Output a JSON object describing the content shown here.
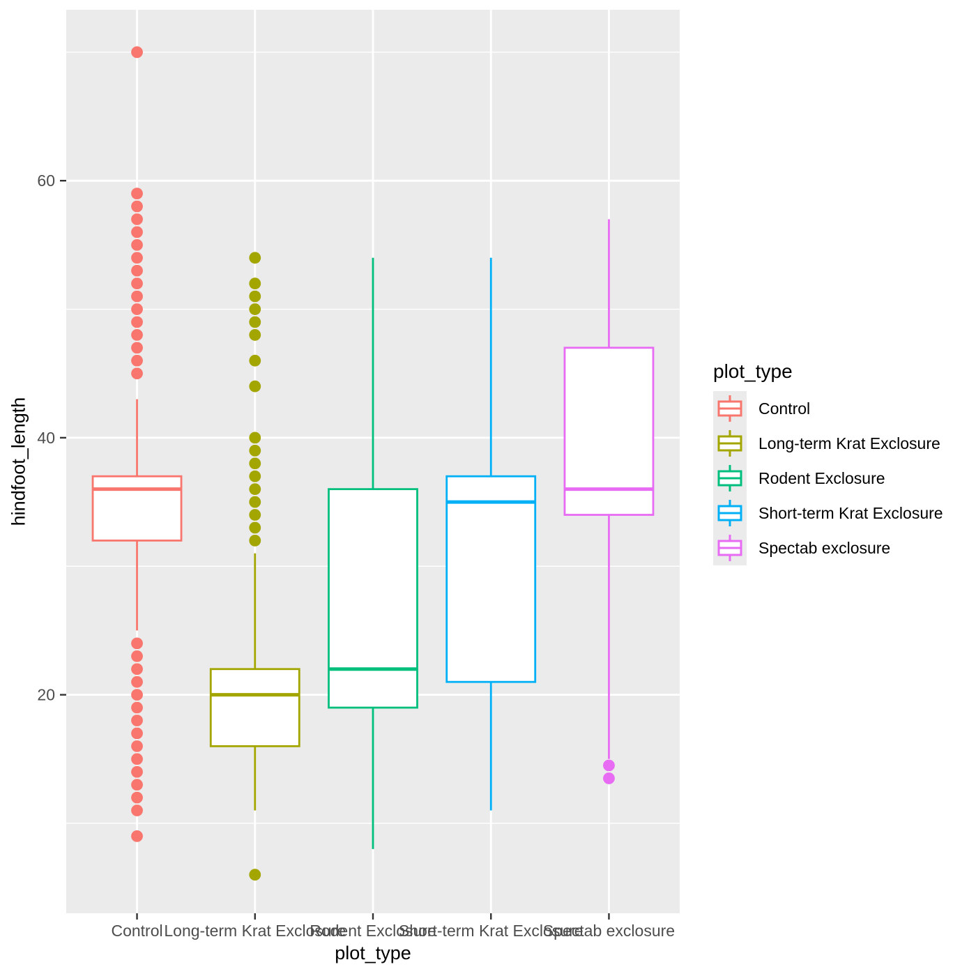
{
  "chart_data": {
    "type": "boxplot",
    "title": "",
    "xlabel": "plot_type",
    "ylabel": "hindfoot_length",
    "y_axis": {
      "major_ticks": [
        20,
        40,
        60
      ],
      "minor_gridlines": [
        10,
        30,
        50,
        70
      ],
      "range": [
        3.0,
        73.3
      ],
      "grid": true
    },
    "x_axis": {
      "categories": [
        "Control",
        "Long-term Krat Exclosure",
        "Rodent Exclosure",
        "Short-term Krat Exclosure",
        "Spectab exclosure"
      ]
    },
    "legend": {
      "title": "plot_type",
      "position": "right",
      "entries": [
        {
          "label": "Control",
          "color": "#F8766D"
        },
        {
          "label": "Long-term Krat Exclosure",
          "color": "#A3A500"
        },
        {
          "label": "Rodent Exclosure",
          "color": "#00BF7D"
        },
        {
          "label": "Short-term Krat Exclosure",
          "color": "#00B0F6"
        },
        {
          "label": "Spectab exclosure",
          "color": "#E76BF3"
        }
      ]
    },
    "series": [
      {
        "name": "Control",
        "color": "#F8766D",
        "stats": {
          "lower_whisker": 25,
          "q1": 32,
          "median": 36,
          "q3": 37,
          "upper_whisker": 43
        },
        "outliers": [
          70,
          59,
          58,
          57,
          56,
          55,
          54,
          53,
          52,
          51,
          50,
          49,
          48,
          47,
          46,
          45,
          24,
          23,
          22,
          21,
          20,
          19,
          18,
          17,
          16,
          15,
          14,
          13,
          12,
          11,
          9
        ]
      },
      {
        "name": "Long-term Krat Exclosure",
        "color": "#A3A500",
        "stats": {
          "lower_whisker": 11,
          "q1": 16,
          "median": 20,
          "q3": 22,
          "upper_whisker": 31
        },
        "outliers": [
          54,
          52,
          51,
          50,
          49,
          48,
          46,
          44,
          40,
          39,
          38,
          37,
          36,
          35,
          34,
          33,
          32,
          6
        ]
      },
      {
        "name": "Rodent Exclosure",
        "color": "#00BF7D",
        "stats": {
          "lower_whisker": 8,
          "q1": 19,
          "median": 22,
          "q3": 36,
          "upper_whisker": 54
        },
        "outliers": []
      },
      {
        "name": "Short-term Krat Exclosure",
        "color": "#00B0F6",
        "stats": {
          "lower_whisker": 11,
          "q1": 21,
          "median": 35,
          "q3": 37,
          "upper_whisker": 54
        },
        "outliers": []
      },
      {
        "name": "Spectab exclosure",
        "color": "#E76BF3",
        "stats": {
          "lower_whisker": 15,
          "q1": 34,
          "median": 36,
          "q3": 47,
          "upper_whisker": 57
        },
        "outliers": [
          14.5,
          13.5
        ]
      }
    ],
    "style_colors": {
      "panel_background": "#EBEBEB",
      "gridline": "#FFFFFF",
      "tick_mark": "#333333",
      "tick_label": "#4D4D4D",
      "axis_title": "#000000",
      "box_fill": "#FFFFFF"
    }
  }
}
